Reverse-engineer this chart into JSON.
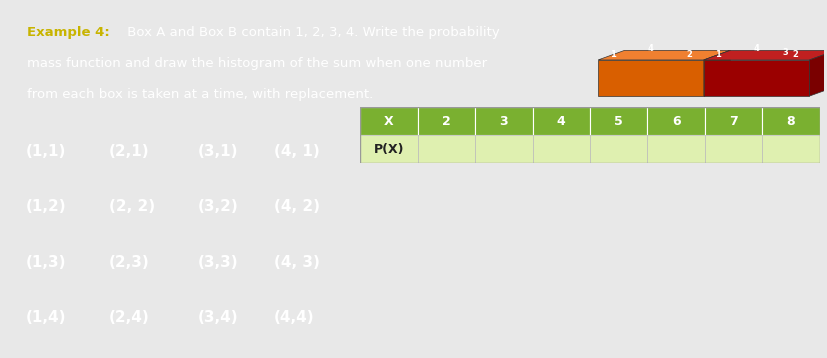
{
  "title_bg": "#1a2540",
  "title_highlight_color": "#c8b400",
  "title_highlight": "Example 4:",
  "title_rest_line1": " Box A and Box B contain 1, 2, 3, 4. Write the probability",
  "title_line2": "mass function and draw the histogram of the sum when one number",
  "title_line3": "from each box is taken at a time, with replacement.",
  "title_text_color": "#ffffff",
  "sample_space_bg": "#151e30",
  "sample_space_text_color": "#ffffff",
  "sample_space": [
    [
      "(1,1)",
      "(2,1)",
      "(3,1)",
      "(4, 1)"
    ],
    [
      "(1,2)",
      "(2, 2)",
      "(3,2)",
      "(4, 2)"
    ],
    [
      "(1,3)",
      "(2,3)",
      "(3,3)",
      "(4, 3)"
    ],
    [
      "(1,4)",
      "(2,4)",
      "(3,4)",
      "(4,4)"
    ]
  ],
  "table_header": [
    "X",
    "2",
    "3",
    "4",
    "5",
    "6",
    "7",
    "8"
  ],
  "table_row_label": "P(X)",
  "table_header_bg": "#7ab030",
  "table_body_bg": "#dff0b0",
  "table_header_text": "#ffffff",
  "table_body_text": "#222222",
  "img_bg": "#1a1e30",
  "fig_bg": "#e8e8e8",
  "fig_width": 8.28,
  "fig_height": 3.58,
  "orange_front": "#d95f00",
  "orange_top": "#f08030",
  "orange_right": "#b84000",
  "red_front": "#9b0000",
  "red_top": "#c02020",
  "red_right": "#7a0000"
}
